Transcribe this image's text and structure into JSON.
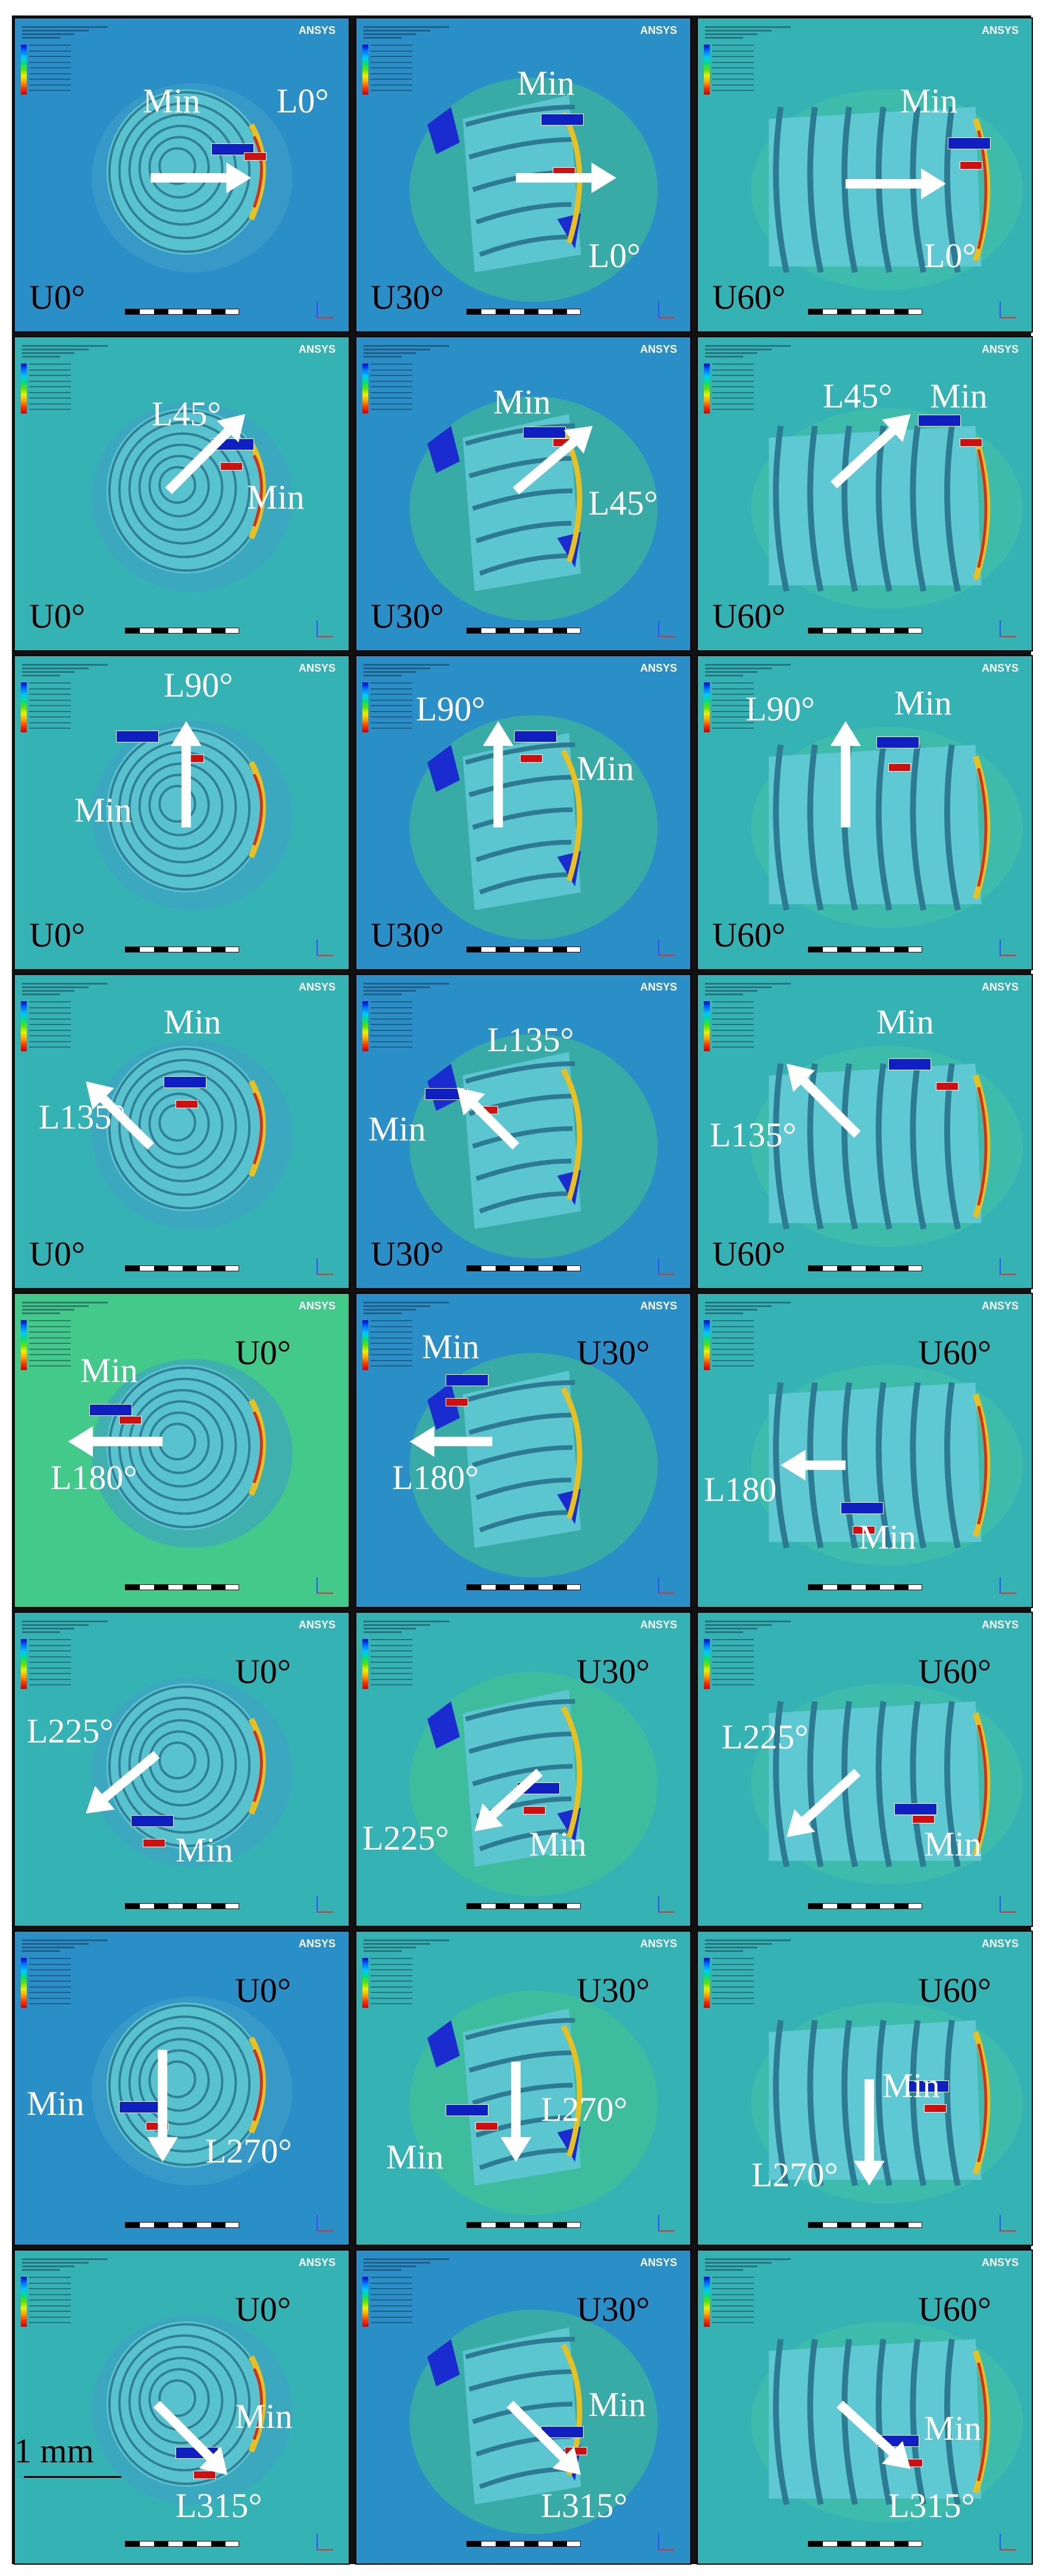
{
  "brand": "ANSYS",
  "scale_label": "1 mm",
  "min_label": "Min",
  "panels": [
    {
      "u": "U0°",
      "l": "L0°"
    },
    {
      "u": "U30°",
      "l": "L0°"
    },
    {
      "u": "U60°",
      "l": "L0°"
    },
    {
      "u": "U0°",
      "l": "L45°"
    },
    {
      "u": "U30°",
      "l": "L45°"
    },
    {
      "u": "U60°",
      "l": "L45°"
    },
    {
      "u": "U0°",
      "l": "L90°"
    },
    {
      "u": "U30°",
      "l": "L90°"
    },
    {
      "u": "U60°",
      "l": "L90°"
    },
    {
      "u": "U0°",
      "l": "L135°"
    },
    {
      "u": "U30°",
      "l": "L135°"
    },
    {
      "u": "U60°",
      "l": "L135°"
    },
    {
      "u": "U0°",
      "l": "L180°"
    },
    {
      "u": "U30°",
      "l": "L180°"
    },
    {
      "u": "U60°",
      "l": "L180"
    },
    {
      "u": "U0°",
      "l": "L225°"
    },
    {
      "u": "U30°",
      "l": "L225°"
    },
    {
      "u": "U60°",
      "l": "L225°"
    },
    {
      "u": "U0°",
      "l": "L270°"
    },
    {
      "u": "U30°",
      "l": "L270°"
    },
    {
      "u": "U60°",
      "l": "L270°"
    },
    {
      "u": "U0°",
      "l": "L315°"
    },
    {
      "u": "U30°",
      "l": "L315°"
    },
    {
      "u": "U60°",
      "l": "L315°"
    }
  ],
  "colors": {
    "bg_teal": "#35b3b4",
    "bg_blue": "#2a8fc7",
    "green_zone": "#43c98a",
    "stress_max": "#d01010",
    "min_tag": "#1020c0",
    "label_light": "#ffffff",
    "label_dark": "#000000"
  }
}
